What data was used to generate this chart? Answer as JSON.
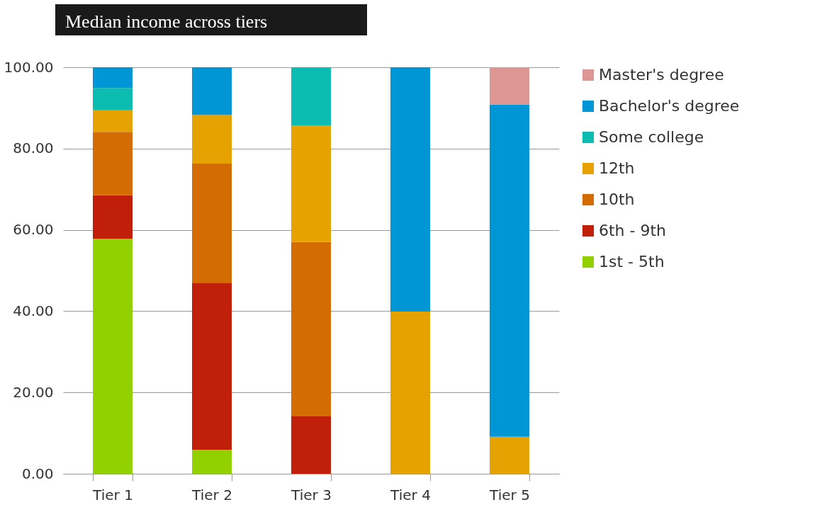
{
  "chart_data": {
    "type": "bar",
    "title": "Median income across tiers",
    "stacked": true,
    "categories": [
      "Tier 1",
      "Tier 2",
      "Tier 3",
      "Tier 4",
      "Tier 5"
    ],
    "series": [
      {
        "name": "1st - 5th",
        "color": "#92d000",
        "values": [
          57.8,
          5.9,
          null,
          null,
          null
        ]
      },
      {
        "name": "6th - 9th",
        "color": "#c0200a",
        "values": [
          10.7,
          41.1,
          14.1,
          null,
          null
        ]
      },
      {
        "name": "10th",
        "color": "#d46c04",
        "values": [
          15.6,
          29.3,
          42.9,
          null,
          null
        ]
      },
      {
        "name": "12th",
        "color": "#e6a200",
        "values": [
          5.3,
          12.0,
          28.7,
          39.9,
          9.1
        ]
      },
      {
        "name": "Some college",
        "color": "#0cbcb0",
        "values": [
          5.5,
          null,
          14.3,
          null,
          null
        ]
      },
      {
        "name": "Bachelor's degree",
        "color": "#0096d6",
        "values": [
          5.1,
          11.7,
          null,
          60.1,
          81.7
        ]
      },
      {
        "name": "Master's degree",
        "color": "#dc9694",
        "values": [
          null,
          null,
          null,
          null,
          9.2
        ]
      }
    ],
    "ylim": [
      0,
      100
    ],
    "yticks": [
      {
        "value": 0,
        "label": "0.00"
      },
      {
        "value": 20,
        "label": "20.00"
      },
      {
        "value": 40,
        "label": "40.00"
      },
      {
        "value": 60,
        "label": "60.00"
      },
      {
        "value": 80,
        "label": "80.00"
      },
      {
        "value": 100,
        "label": "100.00"
      }
    ],
    "grid": "y",
    "legend": "right"
  }
}
